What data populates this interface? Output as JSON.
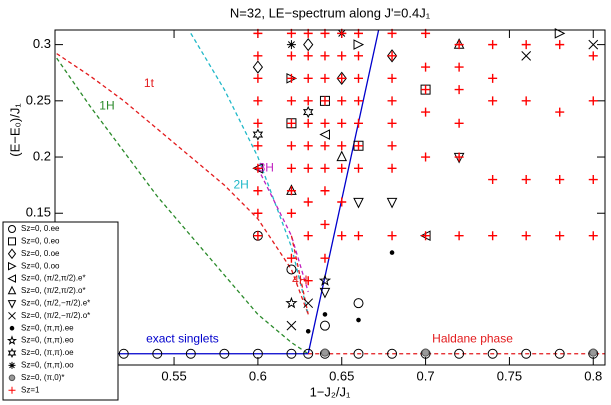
{
  "chart_data": {
    "type": "scatter",
    "title": "N=32, LE−spectrum along J'=0.4J₁",
    "x_label": "1−J₂/J₁",
    "y_label": "(E−E₀)/J₁",
    "xlim": [
      0.479,
      0.807
    ],
    "ylim": [
      0.015,
      0.313
    ],
    "xticks": [
      0.55,
      0.6,
      0.65,
      0.7,
      0.75,
      0.8
    ],
    "yticks": [
      0.15,
      0.2,
      0.25,
      0.3
    ],
    "lines": [
      {
        "color": "#2a8a2a",
        "dash": true,
        "x": [
          0.48,
          0.5,
          0.52,
          0.54,
          0.56,
          0.58,
          0.6,
          0.62,
          0.63
        ],
        "values": [
          0.288,
          0.245,
          0.205,
          0.165,
          0.13,
          0.095,
          0.06,
          0.035,
          0.025
        ]
      },
      {
        "color": "#e31a1c",
        "dash": true,
        "x": [
          0.48,
          0.5,
          0.52,
          0.54,
          0.56,
          0.58,
          0.6,
          0.62,
          0.63
        ],
        "values": [
          0.292,
          0.272,
          0.25,
          0.225,
          0.2,
          0.175,
          0.145,
          0.1,
          0.06
        ]
      },
      {
        "color": "#20b8c8",
        "dash": true,
        "x": [
          0.56,
          0.58,
          0.6,
          0.62,
          0.63
        ],
        "values": [
          0.31,
          0.26,
          0.2,
          0.12,
          0.06
        ]
      },
      {
        "color": "#c020c0",
        "dash": true,
        "x": [
          0.6,
          0.62,
          0.63
        ],
        "values": [
          0.19,
          0.13,
          0.08
        ]
      },
      {
        "color": "#e31a1c",
        "dash": true,
        "x": [
          0.62,
          0.63
        ],
        "values": [
          0.13,
          0.06
        ]
      },
      {
        "color": "#0000cc",
        "dash": false,
        "x": [
          0.479,
          0.63,
          0.672
        ],
        "values": [
          0.025,
          0.025,
          0.313
        ]
      },
      {
        "color": "#e31a1c",
        "dash": true,
        "x": [
          0.63,
          0.807
        ],
        "values": [
          0.025,
          0.025
        ]
      }
    ],
    "annotations": [
      {
        "text": "1H",
        "x": 0.51,
        "y": 0.245,
        "color": "#2a8a2a"
      },
      {
        "text": "1t",
        "x": 0.535,
        "y": 0.265,
        "color": "#e31a1c"
      },
      {
        "text": "2H",
        "x": 0.59,
        "y": 0.175,
        "color": "#20b8c8"
      },
      {
        "text": "3H",
        "x": 0.605,
        "y": 0.19,
        "color": "#c020c0"
      },
      {
        "text": "4H",
        "x": 0.625,
        "y": 0.09,
        "color": "#e31a1c"
      },
      {
        "text": "exact singlets",
        "x": 0.555,
        "y": 0.038,
        "color": "#0000cc"
      },
      {
        "text": "Haldane phase",
        "x": 0.728,
        "y": 0.038,
        "color": "#e31a1c"
      }
    ],
    "series": [
      {
        "name": "Sz=0, 0.ee",
        "marker": "circle",
        "color": "#000000",
        "x": [
          0.48,
          0.5,
          0.52,
          0.54,
          0.56,
          0.58,
          0.6,
          0.62,
          0.63,
          0.64,
          0.66,
          0.68,
          0.7,
          0.72,
          0.74,
          0.76,
          0.78,
          0.8,
          0.6,
          0.62,
          0.64,
          0.66
        ],
        "values": [
          0.025,
          0.025,
          0.025,
          0.025,
          0.025,
          0.025,
          0.025,
          0.025,
          0.025,
          0.025,
          0.025,
          0.025,
          0.025,
          0.025,
          0.025,
          0.025,
          0.025,
          0.025,
          0.13,
          0.1,
          0.05,
          0.07
        ]
      },
      {
        "name": "Sz=0, 0.eo",
        "marker": "square",
        "color": "#000000",
        "x": [
          0.62,
          0.64,
          0.66,
          0.7
        ],
        "values": [
          0.23,
          0.25,
          0.21,
          0.26
        ]
      },
      {
        "name": "Sz=0, 0.oe",
        "marker": "diamond",
        "color": "#000000",
        "x": [
          0.6,
          0.63,
          0.65,
          0.68
        ],
        "values": [
          0.28,
          0.3,
          0.27,
          0.29
        ]
      },
      {
        "name": "Sz=0, 0.oo",
        "marker": "tri-right",
        "color": "#000000",
        "x": [
          0.62,
          0.66,
          0.78
        ],
        "values": [
          0.27,
          0.3,
          0.31
        ]
      },
      {
        "name": "Sz=0, (π/2,π/2).e*",
        "marker": "tri-left",
        "color": "#000000",
        "x": [
          0.6,
          0.64,
          0.7
        ],
        "values": [
          0.19,
          0.22,
          0.13
        ]
      },
      {
        "name": "Sz=0, (π/2,π/2).o*",
        "marker": "tri-up",
        "color": "#000000",
        "x": [
          0.62,
          0.65,
          0.72
        ],
        "values": [
          0.17,
          0.2,
          0.3
        ]
      },
      {
        "name": "Sz=0, (π/2,−π/2).e*",
        "marker": "tri-down",
        "color": "#000000",
        "x": [
          0.64,
          0.66,
          0.68,
          0.72
        ],
        "values": [
          0.08,
          0.16,
          0.16,
          0.2
        ]
      },
      {
        "name": "Sz=0, (π/2,−π/2).o*",
        "marker": "x",
        "color": "#000000",
        "x": [
          0.62,
          0.63,
          0.76,
          0.8
        ],
        "values": [
          0.05,
          0.07,
          0.29,
          0.3
        ]
      },
      {
        "name": "Sz=0, (π,π).ee",
        "marker": "dot",
        "color": "#000000",
        "x": [
          0.63,
          0.64,
          0.66,
          0.68
        ],
        "values": [
          0.045,
          0.06,
          0.055,
          0.115
        ]
      },
      {
        "name": "Sz=0, (π,π).eo",
        "marker": "star",
        "color": "#000000",
        "x": [
          0.62,
          0.64
        ],
        "values": [
          0.07,
          0.09
        ]
      },
      {
        "name": "Sz=0, (π,π).oe",
        "marker": "star6",
        "color": "#000000",
        "x": [
          0.6,
          0.63
        ],
        "values": [
          0.22,
          0.24
        ]
      },
      {
        "name": "Sz=0, (π,π).oo",
        "marker": "asterisk",
        "color": "#000000",
        "x": [
          0.62,
          0.65
        ],
        "values": [
          0.3,
          0.31
        ]
      },
      {
        "name": "Sz=0, (π,0)*",
        "marker": "gray-circle",
        "color": "#999999",
        "x": [
          0.64,
          0.7,
          0.8
        ],
        "values": [
          0.026,
          0.026,
          0.026
        ]
      },
      {
        "name": "Sz=1",
        "marker": "plus",
        "color": "#ff0000",
        "x": [
          0.6,
          0.6,
          0.6,
          0.6,
          0.6,
          0.6,
          0.6,
          0.6,
          0.6,
          0.6,
          0.62,
          0.62,
          0.62,
          0.62,
          0.62,
          0.62,
          0.62,
          0.62,
          0.62,
          0.62,
          0.63,
          0.63,
          0.63,
          0.63,
          0.63,
          0.63,
          0.63,
          0.63,
          0.63,
          0.63,
          0.64,
          0.64,
          0.64,
          0.64,
          0.64,
          0.64,
          0.64,
          0.64,
          0.64,
          0.64,
          0.65,
          0.65,
          0.65,
          0.65,
          0.65,
          0.65,
          0.65,
          0.65,
          0.65,
          0.66,
          0.66,
          0.66,
          0.66,
          0.66,
          0.66,
          0.66,
          0.66,
          0.68,
          0.68,
          0.68,
          0.68,
          0.68,
          0.68,
          0.68,
          0.68,
          0.7,
          0.7,
          0.7,
          0.7,
          0.7,
          0.7,
          0.72,
          0.72,
          0.72,
          0.72,
          0.72,
          0.72,
          0.74,
          0.74,
          0.74,
          0.74,
          0.74,
          0.76,
          0.76,
          0.76,
          0.76,
          0.78,
          0.78,
          0.78,
          0.78,
          0.8,
          0.8,
          0.8,
          0.8
        ],
        "values": [
          0.31,
          0.29,
          0.27,
          0.25,
          0.23,
          0.21,
          0.19,
          0.17,
          0.15,
          0.13,
          0.31,
          0.29,
          0.27,
          0.25,
          0.23,
          0.21,
          0.19,
          0.17,
          0.15,
          0.11,
          0.31,
          0.29,
          0.27,
          0.25,
          0.23,
          0.21,
          0.19,
          0.16,
          0.13,
          0.09,
          0.31,
          0.29,
          0.27,
          0.25,
          0.23,
          0.21,
          0.19,
          0.17,
          0.14,
          0.11,
          0.31,
          0.29,
          0.27,
          0.25,
          0.23,
          0.21,
          0.19,
          0.16,
          0.13,
          0.31,
          0.29,
          0.27,
          0.25,
          0.23,
          0.21,
          0.19,
          0.13,
          0.31,
          0.29,
          0.27,
          0.25,
          0.23,
          0.21,
          0.19,
          0.13,
          0.31,
          0.28,
          0.26,
          0.24,
          0.2,
          0.13,
          0.3,
          0.28,
          0.26,
          0.23,
          0.2,
          0.13,
          0.3,
          0.27,
          0.25,
          0.18,
          0.13,
          0.3,
          0.25,
          0.18,
          0.13,
          0.3,
          0.24,
          0.18,
          0.13,
          0.29,
          0.25,
          0.18,
          0.13
        ]
      }
    ]
  }
}
